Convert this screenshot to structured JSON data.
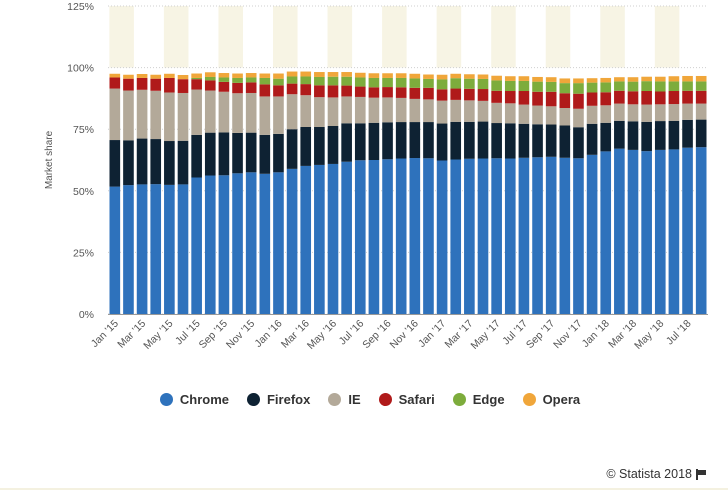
{
  "chart_data": {
    "type": "bar",
    "stacked": true,
    "ylabel": "Market share",
    "yticks": [
      "0%",
      "25%",
      "50%",
      "75%",
      "100%",
      "125%"
    ],
    "ylim": [
      0,
      125
    ],
    "grid": true,
    "legend_position": "bottom",
    "categories": [
      "Jan '15",
      "Feb '15",
      "Mar '15",
      "Apr '15",
      "May '15",
      "Jun '15",
      "Jul '15",
      "Aug '15",
      "Sep '15",
      "Oct '15",
      "Nov '15",
      "Dec '15",
      "Jan '16",
      "Feb '16",
      "Mar '16",
      "Apr '16",
      "May '16",
      "Jun '16",
      "Jul '16",
      "Aug '16",
      "Sep '16",
      "Oct '16",
      "Nov '16",
      "Dec '16",
      "Jan '17",
      "Feb '17",
      "Mar '17",
      "Apr '17",
      "May '17",
      "Jun '17",
      "Jul '17",
      "Aug '17",
      "Sep '17",
      "Oct '17",
      "Nov '17",
      "Dec '17",
      "Jan '18",
      "Feb '18",
      "Mar '18",
      "Apr '18",
      "May '18",
      "Jun '18",
      "Jul '18",
      "Aug '18"
    ],
    "x_tick_labels": [
      "Jan '15",
      "Mar '15",
      "May '15",
      "Jul '15",
      "Sep '15",
      "Nov '15",
      "Jan '16",
      "Mar '16",
      "May '16",
      "Jul '16",
      "Sep '16",
      "Nov '16",
      "Jan '17",
      "Mar '17",
      "May '17",
      "Jul '17",
      "Sep '17",
      "Nov '17",
      "Jan '18",
      "Mar '18",
      "May '18",
      "Jul '18"
    ],
    "series": [
      {
        "name": "Chrome",
        "color": "#2e72bc",
        "values": [
          51.7,
          52.3,
          52.6,
          52.7,
          52.4,
          52.6,
          55.4,
          56.2,
          56.3,
          57.1,
          57.5,
          56.9,
          57.5,
          58.9,
          60.1,
          60.5,
          60.9,
          61.8,
          62.4,
          62.5,
          62.8,
          63.1,
          63.3,
          63.2,
          62.3,
          62.7,
          63.0,
          63.1,
          63.2,
          63.1,
          63.4,
          63.6,
          63.8,
          63.4,
          63.2,
          64.6,
          66.0,
          67.1,
          66.6,
          66.1,
          66.6,
          66.8,
          67.5,
          67.7
        ]
      },
      {
        "name": "Firefox",
        "color": "#0e2233",
        "values": [
          18.9,
          18.2,
          18.6,
          18.3,
          17.8,
          17.7,
          17.3,
          17.4,
          17.4,
          16.4,
          16.1,
          15.8,
          15.6,
          16.1,
          15.8,
          15.4,
          15.4,
          15.6,
          15.0,
          15.1,
          15.0,
          14.8,
          14.6,
          14.7,
          15.0,
          15.3,
          15.0,
          15.0,
          14.3,
          14.3,
          13.8,
          13.4,
          13.1,
          13.1,
          12.6,
          12.6,
          11.6,
          11.3,
          11.6,
          11.9,
          11.7,
          11.6,
          11.3,
          11.2
        ]
      },
      {
        "name": "IE",
        "color": "#b3a999",
        "values": [
          20.9,
          20.2,
          19.8,
          19.6,
          19.7,
          19.4,
          18.4,
          17.1,
          16.5,
          16.1,
          16.1,
          15.6,
          15.2,
          14.2,
          12.9,
          12.1,
          11.6,
          10.9,
          10.7,
          10.2,
          10.1,
          9.8,
          9.4,
          9.2,
          9.3,
          8.9,
          8.7,
          8.4,
          8.2,
          8.1,
          7.8,
          7.6,
          7.4,
          7.1,
          7.5,
          7.3,
          7.1,
          7.0,
          6.9,
          7.0,
          6.8,
          6.8,
          6.6,
          6.5
        ]
      },
      {
        "name": "Safari",
        "color": "#b01a1a",
        "values": [
          4.5,
          4.8,
          4.8,
          4.9,
          5.9,
          5.6,
          4.2,
          4.1,
          4.0,
          4.2,
          4.3,
          4.9,
          4.5,
          4.3,
          4.5,
          4.8,
          4.9,
          4.4,
          4.2,
          4.2,
          4.2,
          4.3,
          4.5,
          4.7,
          4.6,
          4.6,
          4.7,
          4.8,
          4.9,
          5.0,
          5.5,
          5.6,
          5.9,
          6.0,
          6.1,
          5.4,
          5.3,
          5.2,
          5.3,
          5.5,
          5.2,
          5.3,
          5.2,
          5.2
        ]
      },
      {
        "name": "Edge",
        "color": "#7dac3c",
        "values": [
          0,
          0,
          0,
          0,
          0,
          0,
          0.5,
          1.4,
          1.8,
          2.0,
          2.0,
          2.6,
          2.7,
          2.9,
          3.1,
          3.4,
          3.5,
          3.6,
          3.7,
          3.8,
          3.7,
          3.8,
          3.8,
          3.6,
          4.0,
          4.2,
          4.1,
          4.1,
          4.2,
          4.1,
          4.1,
          4.1,
          4.0,
          4.1,
          4.3,
          4.0,
          4.0,
          3.8,
          3.9,
          4.0,
          4.1,
          3.9,
          3.8,
          3.8
        ]
      },
      {
        "name": "Opera",
        "color": "#f0a63a",
        "values": [
          1.5,
          1.6,
          1.6,
          1.6,
          1.7,
          1.7,
          1.8,
          1.9,
          1.8,
          1.8,
          1.8,
          1.8,
          2.1,
          2.0,
          2.0,
          2.0,
          1.9,
          1.9,
          1.9,
          1.9,
          1.9,
          1.9,
          1.9,
          1.8,
          1.9,
          1.8,
          1.8,
          1.8,
          1.9,
          1.9,
          1.9,
          1.9,
          1.9,
          1.9,
          1.9,
          1.8,
          1.8,
          1.7,
          1.8,
          1.8,
          1.9,
          2.1,
          2.2,
          2.2
        ]
      }
    ]
  },
  "legend": [
    {
      "label": "Chrome",
      "color": "#2e72bc"
    },
    {
      "label": "Firefox",
      "color": "#0e2233"
    },
    {
      "label": "IE",
      "color": "#b3a999"
    },
    {
      "label": "Safari",
      "color": "#b01a1a"
    },
    {
      "label": "Edge",
      "color": "#7dac3c"
    },
    {
      "label": "Opera",
      "color": "#f0a63a"
    }
  ],
  "credits": "© Statista 2018"
}
